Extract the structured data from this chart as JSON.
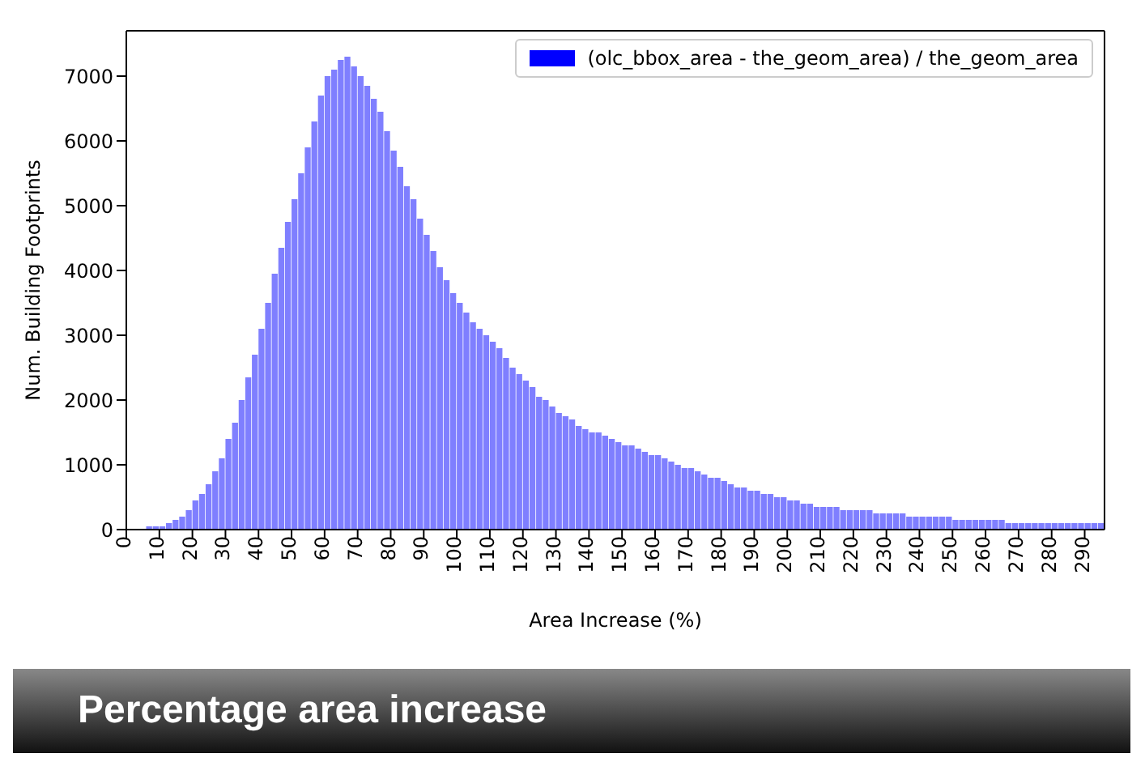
{
  "chart_data": {
    "type": "histogram",
    "xlabel": "Area Increase (%)",
    "ylabel": "Num. Building Footprints",
    "annotations": [
      "Percentage area increase"
    ],
    "bins": [
      0,
      2,
      4,
      6,
      8,
      10,
      12,
      14,
      16,
      18,
      20,
      22,
      24,
      26,
      28,
      30,
      32,
      34,
      36,
      38,
      40,
      42,
      44,
      46,
      48,
      50,
      52,
      54,
      56,
      58,
      60,
      62,
      64,
      66,
      68,
      70,
      72,
      74,
      76,
      78,
      80,
      82,
      84,
      86,
      88,
      90,
      92,
      94,
      96,
      98,
      100,
      102,
      104,
      106,
      108,
      110,
      112,
      114,
      116,
      118,
      120,
      122,
      124,
      126,
      128,
      130,
      132,
      134,
      136,
      138,
      140,
      142,
      144,
      146,
      148,
      150,
      152,
      154,
      156,
      158,
      160,
      162,
      164,
      166,
      168,
      170,
      172,
      174,
      176,
      178,
      180,
      182,
      184,
      186,
      188,
      190,
      192,
      194,
      196,
      198,
      200,
      202,
      204,
      206,
      208,
      210,
      212,
      214,
      216,
      218,
      220,
      222,
      224,
      226,
      228,
      230,
      232,
      234,
      236,
      238,
      240,
      242,
      244,
      246,
      248,
      250,
      252,
      254,
      256,
      258,
      260,
      262,
      264,
      266,
      268,
      270,
      272,
      274,
      276,
      278,
      280,
      282,
      284,
      286,
      288,
      290,
      292,
      294,
      296
    ],
    "series": [
      {
        "name": "(olc_bbox_area - the_geom_area) / the_geom_area",
        "color": "#0000ff",
        "values": [
          0,
          0,
          0,
          50,
          50,
          50,
          100,
          150,
          200,
          300,
          450,
          550,
          700,
          900,
          1100,
          1400,
          1650,
          2000,
          2350,
          2700,
          3100,
          3500,
          3950,
          4350,
          4750,
          5100,
          5500,
          5900,
          6300,
          6700,
          7000,
          7100,
          7250,
          7300,
          7150,
          7000,
          6850,
          6650,
          6450,
          6150,
          5850,
          5600,
          5300,
          5100,
          4800,
          4550,
          4300,
          4050,
          3850,
          3650,
          3500,
          3350,
          3200,
          3100,
          3000,
          2900,
          2800,
          2650,
          2500,
          2400,
          2300,
          2200,
          2050,
          2000,
          1900,
          1800,
          1750,
          1700,
          1600,
          1550,
          1500,
          1500,
          1450,
          1400,
          1350,
          1300,
          1300,
          1250,
          1200,
          1150,
          1150,
          1100,
          1050,
          1000,
          950,
          950,
          900,
          850,
          800,
          800,
          750,
          700,
          650,
          650,
          600,
          600,
          550,
          550,
          500,
          500,
          450,
          450,
          400,
          400,
          350,
          350,
          350,
          350,
          300,
          300,
          300,
          300,
          300,
          250,
          250,
          250,
          250,
          250,
          200,
          200,
          200,
          200,
          200,
          200,
          200,
          150,
          150,
          150,
          150,
          150,
          150,
          150,
          150,
          100,
          100,
          100,
          100,
          100,
          100,
          100,
          100,
          100,
          100,
          100,
          100,
          100,
          100,
          100
        ]
      }
    ],
    "xlim": [
      0,
      296
    ],
    "xticks": [
      0,
      10,
      20,
      30,
      40,
      50,
      60,
      70,
      80,
      90,
      100,
      110,
      120,
      130,
      140,
      150,
      160,
      170,
      180,
      190,
      200,
      210,
      220,
      230,
      240,
      250,
      260,
      270,
      280,
      290
    ],
    "ylim": [
      0,
      7700
    ],
    "yticks": [
      0,
      1000,
      2000,
      3000,
      4000,
      5000,
      6000,
      7000
    ],
    "grid": false,
    "legend": "top right"
  }
}
